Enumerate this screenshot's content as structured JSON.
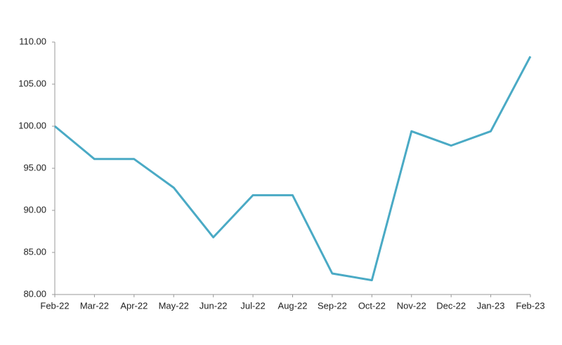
{
  "chart_data": {
    "type": "line",
    "categories": [
      "Feb-22",
      "Mar-22",
      "Apr-22",
      "May-22",
      "Jun-22",
      "Jul-22",
      "Aug-22",
      "Sep-22",
      "Oct-22",
      "Nov-22",
      "Dec-22",
      "Jan-23",
      "Feb-23"
    ],
    "series": [
      {
        "color": "#4aaac5",
        "values": [
          100.0,
          96.1,
          96.1,
          92.7,
          86.8,
          91.8,
          91.8,
          82.5,
          81.7,
          99.4,
          97.7,
          99.4,
          108.3
        ]
      }
    ],
    "ylim": [
      80,
      110
    ],
    "yticks": [
      {
        "value": 80,
        "label": "80.00"
      },
      {
        "value": 85,
        "label": "85.00"
      },
      {
        "value": 90,
        "label": "90.00"
      },
      {
        "value": 95,
        "label": "95.00"
      },
      {
        "value": 100,
        "label": "100.00"
      },
      {
        "value": 105,
        "label": "105.00"
      },
      {
        "value": 110,
        "label": "110.00"
      }
    ],
    "grid": false
  }
}
